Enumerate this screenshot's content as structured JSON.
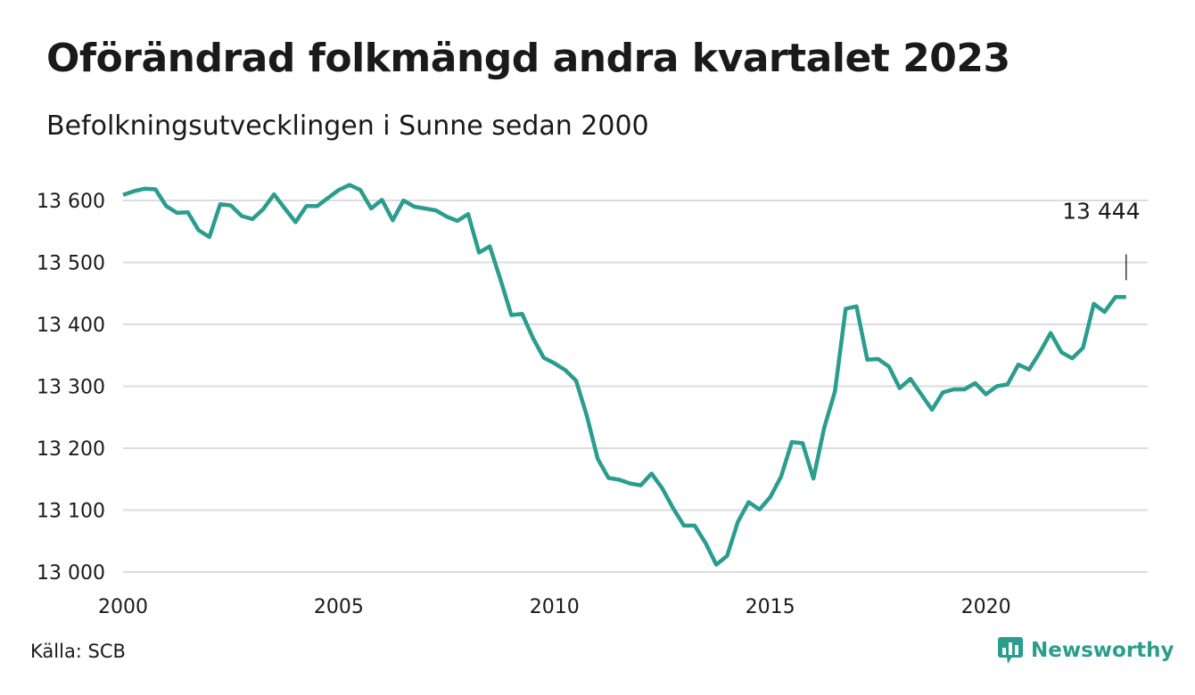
{
  "chart_data": {
    "type": "line",
    "title": "Oförändrad folkmängd andra kvartalet 2023",
    "subtitle": "Befolkningsutvecklingen i Sunne sedan 2000",
    "source": "Källa: SCB",
    "xlabel": "",
    "ylabel": "",
    "x_ticks": [
      "2000",
      "2005",
      "2010",
      "2015",
      "2020"
    ],
    "y_ticks": [
      "13 000",
      "13 100",
      "13 200",
      "13 300",
      "13 400",
      "13 500",
      "13 600"
    ],
    "ylim": [
      13000,
      13600
    ],
    "x_domain": [
      2000,
      2023.75
    ],
    "grid": true,
    "line_color": "#2a9d8f",
    "annotation": "13 444",
    "series": [
      {
        "x": [
          2000.0,
          2000.25,
          2000.5,
          2000.75,
          2001.0,
          2001.25,
          2001.5,
          2001.75,
          2002.0,
          2002.25,
          2002.5,
          2002.75,
          2003.0,
          2003.25,
          2003.5,
          2003.75,
          2004.0,
          2004.25,
          2004.5,
          2004.75,
          2005.0,
          2005.25,
          2005.5,
          2005.75,
          2006.0,
          2006.25,
          2006.5,
          2006.75,
          2007.0,
          2007.25,
          2007.5,
          2007.75,
          2008.0,
          2008.25,
          2008.5,
          2008.75,
          2009.0,
          2009.25,
          2009.5,
          2009.75,
          2010.0,
          2010.25,
          2010.5,
          2010.75,
          2011.0,
          2011.25,
          2011.5,
          2011.75,
          2012.0,
          2012.25,
          2012.5,
          2012.75,
          2013.0,
          2013.25,
          2013.5,
          2013.75,
          2014.0,
          2014.25,
          2014.5,
          2014.75,
          2015.0,
          2015.25,
          2015.5,
          2015.75,
          2016.0,
          2016.25,
          2016.5,
          2016.75,
          2017.0,
          2017.25,
          2017.5,
          2017.75,
          2018.0,
          2018.25,
          2018.5,
          2018.75,
          2019.0,
          2019.25,
          2019.5,
          2019.75,
          2020.0,
          2020.25,
          2020.5,
          2020.75,
          2021.0,
          2021.25,
          2021.5,
          2021.75,
          2022.0,
          2022.25,
          2022.5,
          2022.75,
          2023.0,
          2023.25
        ],
        "values": [
          13609,
          13615,
          13619,
          13618,
          13591,
          13580,
          13581,
          13552,
          13541,
          13594,
          13592,
          13575,
          13570,
          13586,
          13610,
          13587,
          13565,
          13591,
          13591,
          13604,
          13617,
          13625,
          13617,
          13587,
          13601,
          13568,
          13600,
          13590,
          13587,
          13584,
          13574,
          13567,
          13578,
          13516,
          13526,
          13472,
          13415,
          13417,
          13378,
          13346,
          13337,
          13326,
          13309,
          13252,
          13183,
          13152,
          13149,
          13143,
          13140,
          13159,
          13135,
          13103,
          13075,
          13075,
          13047,
          13012,
          13026,
          13081,
          13113,
          13101,
          13121,
          13154,
          13210,
          13208,
          13151,
          13233,
          13292,
          13425,
          13429,
          13343,
          13344,
          13332,
          13297,
          13312,
          13287,
          13262,
          13290,
          13295,
          13295,
          13305,
          13287,
          13300,
          13303,
          13335,
          13327,
          13355,
          13386,
          13355,
          13345,
          13362,
          13433,
          13420,
          13444,
          13444
        ]
      }
    ]
  },
  "brand": {
    "name": "Newsworthy",
    "color": "#2a9d8f"
  }
}
